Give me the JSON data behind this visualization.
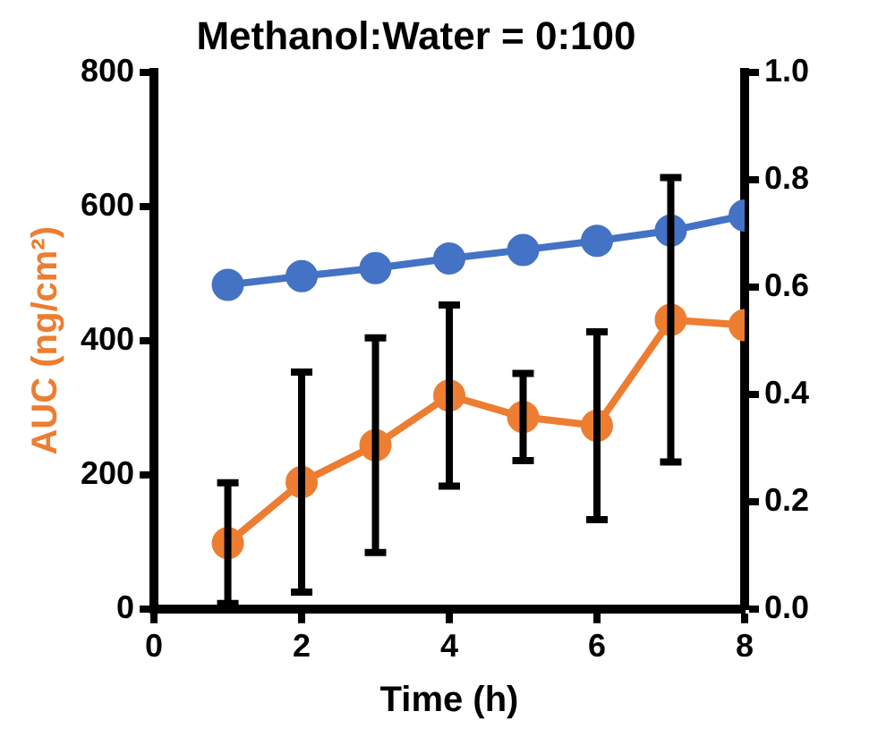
{
  "chart_data": {
    "type": "line",
    "title": "Methanol:Water = 0:100",
    "xlabel": "Time (h)",
    "ylabel": "AUC (ng/cm²)",
    "x": [
      1,
      2,
      3,
      4,
      5,
      6,
      7,
      8
    ],
    "series": [
      {
        "color": "#ed7d31",
        "values": [
          98,
          189,
          244,
          318,
          286,
          273,
          431,
          423
        ],
        "errors": [
          90,
          164,
          160,
          135,
          65,
          140,
          212,
          null
        ]
      },
      {
        "color": "#4472c4",
        "axis": "y2",
        "values": [
          0.604,
          0.62,
          0.635,
          0.653,
          0.669,
          0.686,
          0.705,
          0.733
        ]
      }
    ],
    "xlim": [
      0,
      8
    ],
    "xticks": [
      0,
      2,
      4,
      6,
      8
    ],
    "ylim": [
      0,
      800
    ],
    "yticks": [
      0,
      200,
      400,
      600,
      800
    ],
    "y2lim": [
      0,
      1
    ],
    "y2ticks": [
      {
        "value": 0,
        "label": "0.0"
      },
      {
        "value": 0.2,
        "label": "0.2"
      },
      {
        "value": 0.4,
        "label": "0.4"
      },
      {
        "value": 0.6,
        "label": "0.6"
      },
      {
        "value": 0.8,
        "label": "0.8"
      },
      {
        "value": 1,
        "label": "1.0"
      }
    ],
    "grid": false,
    "legend": false,
    "marker": "circle",
    "line_style": "solid"
  }
}
